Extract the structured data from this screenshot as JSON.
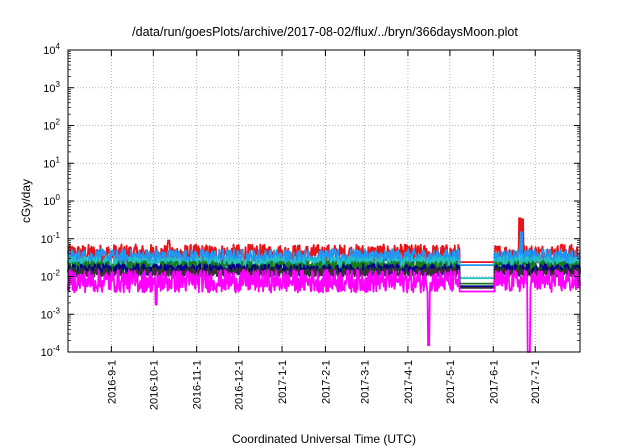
{
  "chart_data": {
    "type": "line",
    "title": "/data/run/goesPlots/archive/2017-08-02/flux/../bryn/366daysMoon.plot",
    "xlabel": "Coordinated Universal Time (UTC)",
    "ylabel": "cGy/day",
    "y_scale": "log",
    "ylim": [
      0.0001,
      10000
    ],
    "xlim": [
      "2016-08-01",
      "2017-08-02"
    ],
    "grid": true,
    "legend": "none",
    "y_ticks": [
      {
        "value": 0.0001,
        "base": "10",
        "exp": "-4"
      },
      {
        "value": 0.001,
        "base": "10",
        "exp": "-3"
      },
      {
        "value": 0.01,
        "base": "10",
        "exp": "-2"
      },
      {
        "value": 0.1,
        "base": "10",
        "exp": "-1"
      },
      {
        "value": 1,
        "base": "10",
        "exp": "0"
      },
      {
        "value": 10,
        "base": "10",
        "exp": "1"
      },
      {
        "value": 100,
        "base": "10",
        "exp": "2"
      },
      {
        "value": 1000,
        "base": "10",
        "exp": "3"
      },
      {
        "value": 10000,
        "base": "10",
        "exp": "4"
      }
    ],
    "x_ticks": [
      {
        "date": "2016-09-01",
        "label": "2016-9-1"
      },
      {
        "date": "2016-10-01",
        "label": "2016-10-1"
      },
      {
        "date": "2016-11-01",
        "label": "2016-11-1"
      },
      {
        "date": "2016-12-01",
        "label": "2016-12-1"
      },
      {
        "date": "2017-01-01",
        "label": "2017-1-1"
      },
      {
        "date": "2017-02-01",
        "label": "2017-2-1"
      },
      {
        "date": "2017-03-01",
        "label": "2017-3-1"
      },
      {
        "date": "2017-04-01",
        "label": "2017-4-1"
      },
      {
        "date": "2017-05-01",
        "label": "2017-5-1"
      },
      {
        "date": "2017-06-01",
        "label": "2017-6-1"
      },
      {
        "date": "2017-07-01",
        "label": "2017-7-1"
      }
    ],
    "data_gap": [
      "2017-05-08",
      "2017-06-02"
    ],
    "series": [
      {
        "color": "#e8141a",
        "baseline": 0.04,
        "spread": 0.25,
        "gap_value": 0.024,
        "points": [
          [
            "2016-08-01",
            0.04
          ],
          [
            "2016-10-12",
            0.09
          ],
          [
            "2017-06-20",
            0.35
          ],
          [
            "2017-06-22",
            0.33
          ],
          [
            "2017-07-20",
            0.07
          ],
          [
            "2017-08-02",
            0.05
          ]
        ]
      },
      {
        "color": "#2196f3",
        "baseline": 0.032,
        "spread": 0.22,
        "gap_value": 0.02,
        "points": [
          [
            "2016-08-01",
            0.032
          ],
          [
            "2017-06-21",
            0.15
          ],
          [
            "2017-08-02",
            0.035
          ]
        ]
      },
      {
        "color": "#22c1c3",
        "baseline": 0.022,
        "spread": 0.18,
        "gap_value": 0.009,
        "points": [
          [
            "2016-08-01",
            0.022
          ],
          [
            "2017-08-02",
            0.02
          ]
        ]
      },
      {
        "color": "#1b7a1b",
        "baseline": 0.018,
        "spread": 0.15,
        "gap_value": 0.0065,
        "points": [
          [
            "2016-08-01",
            0.018
          ],
          [
            "2017-08-02",
            0.017
          ]
        ]
      },
      {
        "color": "#00008b",
        "baseline": 0.015,
        "spread": 0.15,
        "gap_value": 0.0055,
        "points": [
          [
            "2016-08-01",
            0.015
          ],
          [
            "2017-08-02",
            0.014
          ]
        ]
      },
      {
        "color": "#333333",
        "baseline": 0.013,
        "spread": 0.12,
        "gap_value": 0.005,
        "points": [
          [
            "2016-08-01",
            0.013
          ],
          [
            "2017-08-02",
            0.012
          ]
        ]
      },
      {
        "color": "#ff00ff",
        "baseline": 0.0075,
        "spread": 0.3,
        "gap_value": 0.004,
        "points": [
          [
            "2016-08-01",
            0.0075
          ],
          [
            "2016-10-03",
            0.0018
          ],
          [
            "2017-04-16",
            0.00015
          ],
          [
            "2017-06-26",
            0.0001
          ],
          [
            "2017-06-27",
            0.0001
          ],
          [
            "2017-08-02",
            0.007
          ]
        ]
      }
    ]
  }
}
